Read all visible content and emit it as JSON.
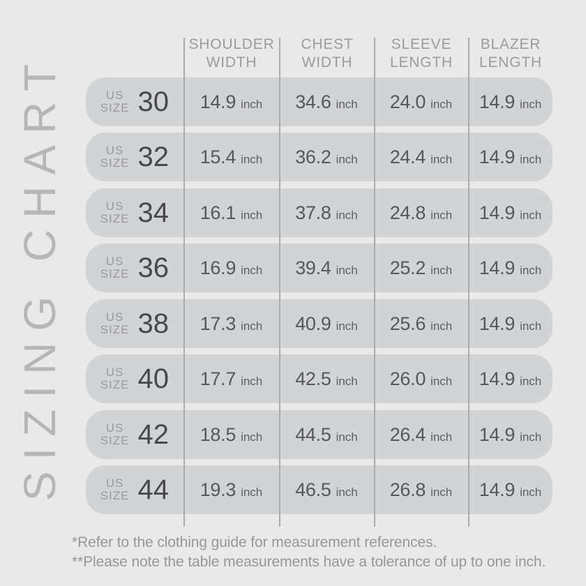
{
  "title": "SIZING CHART",
  "unit": "inch",
  "size_label": {
    "line1": "US",
    "line2": "SIZE"
  },
  "columns": [
    {
      "line1": "SHOULDER",
      "line2": "WIDTH"
    },
    {
      "line1": "CHEST",
      "line2": "WIDTH"
    },
    {
      "line1": "SLEEVE",
      "line2": "LENGTH"
    },
    {
      "line1": "BLAZER",
      "line2": "LENGTH"
    }
  ],
  "rows": [
    {
      "size": "30",
      "values": [
        "14.9",
        "34.6",
        "24.0",
        "14.9"
      ]
    },
    {
      "size": "32",
      "values": [
        "15.4",
        "36.2",
        "24.4",
        "14.9"
      ]
    },
    {
      "size": "34",
      "values": [
        "16.1",
        "37.8",
        "24.8",
        "14.9"
      ]
    },
    {
      "size": "36",
      "values": [
        "16.9",
        "39.4",
        "25.2",
        "14.9"
      ]
    },
    {
      "size": "38",
      "values": [
        "17.3",
        "40.9",
        "25.6",
        "14.9"
      ]
    },
    {
      "size": "40",
      "values": [
        "17.7",
        "42.5",
        "26.0",
        "14.9"
      ]
    },
    {
      "size": "42",
      "values": [
        "18.5",
        "44.5",
        "26.4",
        "14.9"
      ]
    },
    {
      "size": "44",
      "values": [
        "19.3",
        "46.5",
        "26.8",
        "14.9"
      ]
    }
  ],
  "footnotes": [
    "*Refer to the clothing guide for measurement references.",
    "**Please note the table measurements have a tolerance of up to one inch."
  ],
  "colors": {
    "background": "#e9e9ea",
    "row_fill": "#d2d3d4",
    "divider": "#aaabad",
    "title_text": "#b5b6b8",
    "header_text": "#9a9b9e",
    "value_text": "#56575a",
    "size_number_text": "#47484b",
    "size_label_text": "#98999c",
    "footnote_text": "#96979a"
  },
  "chart_data": {
    "type": "table",
    "title": "SIZING CHART",
    "columns": [
      "US SIZE",
      "SHOULDER WIDTH (inch)",
      "CHEST WIDTH (inch)",
      "SLEEVE LENGTH (inch)",
      "BLAZER LENGTH (inch)"
    ],
    "rows": [
      [
        30,
        14.9,
        34.6,
        24.0,
        14.9
      ],
      [
        32,
        15.4,
        36.2,
        24.4,
        14.9
      ],
      [
        34,
        16.1,
        37.8,
        24.8,
        14.9
      ],
      [
        36,
        16.9,
        39.4,
        25.2,
        14.9
      ],
      [
        38,
        17.3,
        40.9,
        25.6,
        14.9
      ],
      [
        40,
        17.7,
        42.5,
        26.0,
        14.9
      ],
      [
        42,
        18.5,
        44.5,
        26.4,
        14.9
      ],
      [
        44,
        19.3,
        46.5,
        26.8,
        14.9
      ]
    ],
    "notes": [
      "*Refer to the clothing guide for measurement references.",
      "**Please note the table measurements have a tolerance of up to one inch."
    ]
  }
}
